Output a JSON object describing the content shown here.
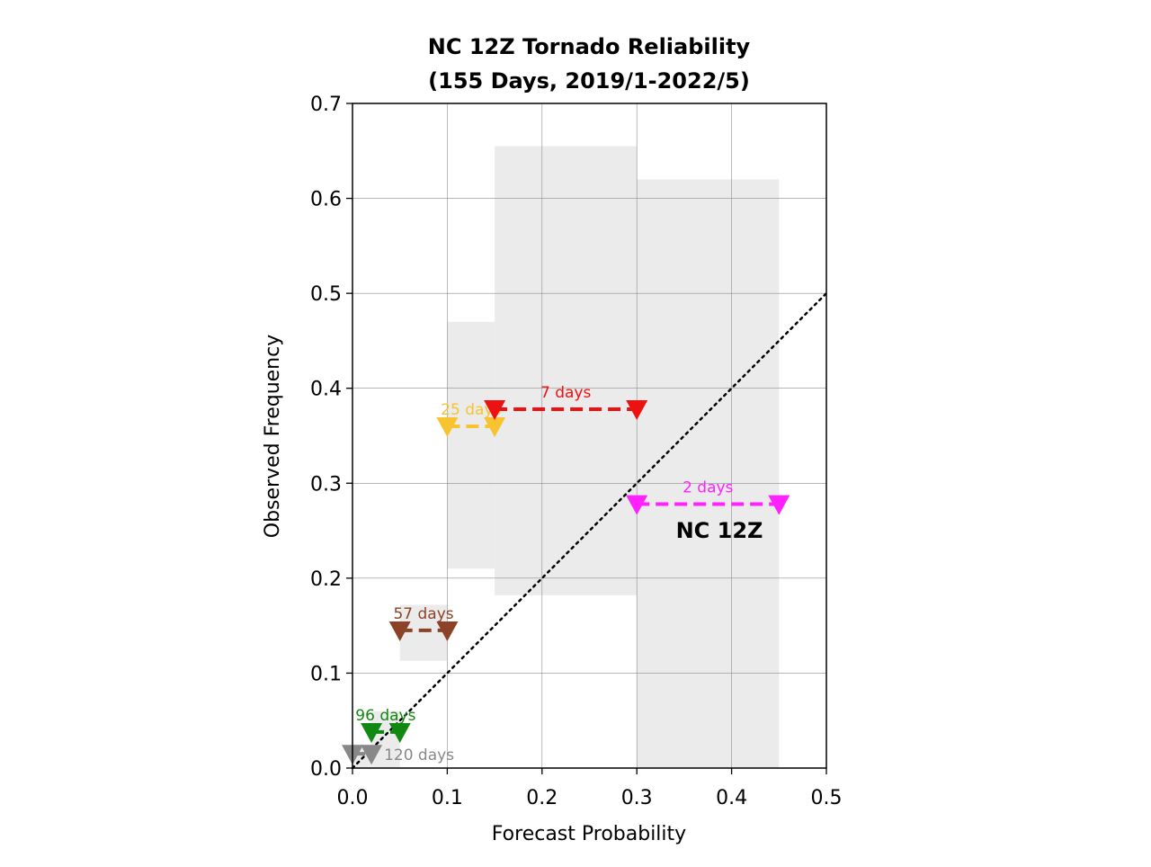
{
  "chart_data": {
    "type": "reliability",
    "title_line1": "NC 12Z Tornado Reliability",
    "title_line2": "(155 Days, 2019/1-2022/5)",
    "xlabel": "Forecast Probability",
    "ylabel": "Observed Frequency",
    "xlim": [
      0.0,
      0.5
    ],
    "ylim": [
      0.0,
      0.7
    ],
    "xticks": [
      0.0,
      0.1,
      0.2,
      0.3,
      0.4,
      0.5
    ],
    "xtick_labels": [
      "0.0",
      "0.1",
      "0.2",
      "0.3",
      "0.4",
      "0.5"
    ],
    "yticks": [
      0.0,
      0.1,
      0.2,
      0.3,
      0.4,
      0.5,
      0.6,
      0.7
    ],
    "ytick_labels": [
      "0.0",
      "0.1",
      "0.2",
      "0.3",
      "0.4",
      "0.5",
      "0.6",
      "0.7"
    ],
    "grid": true,
    "reference_line": {
      "x": [
        0.0,
        0.5
      ],
      "y": [
        0.0,
        0.5
      ],
      "style": "dotted",
      "color": "#000000"
    },
    "annotation": "NC 12Z",
    "bins": [
      {
        "x0": 0.0,
        "x1": 0.02,
        "observed": 0.015,
        "lo": 0.0,
        "hi": 0.025,
        "label": "120 days",
        "color": "#888888"
      },
      {
        "x0": 0.02,
        "x1": 0.05,
        "observed": 0.038,
        "lo": 0.0,
        "hi": 0.06,
        "label": "96 days",
        "color": "#118811"
      },
      {
        "x0": 0.05,
        "x1": 0.1,
        "observed": 0.145,
        "lo": 0.113,
        "hi": 0.172,
        "label": "57 days",
        "color": "#8b4226"
      },
      {
        "x0": 0.1,
        "x1": 0.15,
        "observed": 0.36,
        "lo": 0.21,
        "hi": 0.47,
        "label": "25 days",
        "color": "#f7c32e"
      },
      {
        "x0": 0.15,
        "x1": 0.3,
        "observed": 0.378,
        "lo": 0.182,
        "hi": 0.655,
        "label": "7 days",
        "color": "#ee1111"
      },
      {
        "x0": 0.3,
        "x1": 0.45,
        "observed": 0.278,
        "lo": 0.0,
        "hi": 0.62,
        "label": "2 days",
        "color": "#ff22ff"
      }
    ],
    "uncertainty_color": "#ebebeb"
  }
}
